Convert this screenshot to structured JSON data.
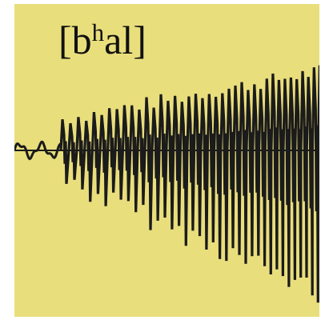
{
  "figure": {
    "label_open": "[b",
    "label_sup": "h",
    "label_close": "al]",
    "colors": {
      "background": "#e9de7c",
      "waveform": "#1b1b1b",
      "baseline": "#1b1b1b"
    }
  }
}
